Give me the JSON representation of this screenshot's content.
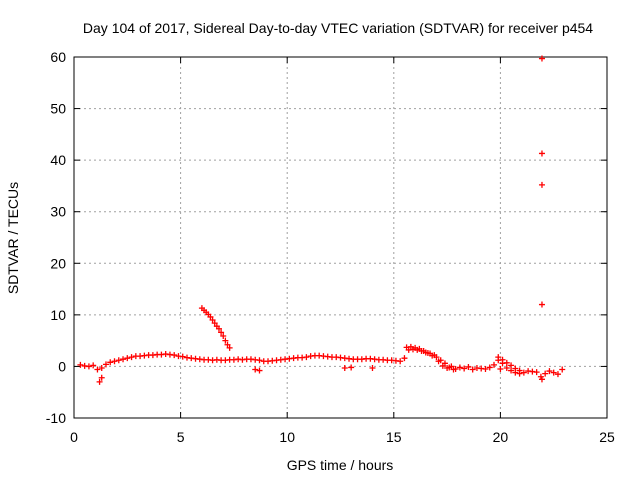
{
  "chart_data": {
    "type": "scatter",
    "title": "Day 104 of 2017, Sidereal Day-to-day VTEC variation (SDTVAR) for receiver p454",
    "xlabel": "GPS time / hours",
    "ylabel": "SDTVAR / TECUs",
    "xlim": [
      0,
      25
    ],
    "ylim": [
      -10,
      60
    ],
    "xticks": [
      0,
      5,
      10,
      15,
      20,
      25
    ],
    "yticks": [
      -10,
      0,
      10,
      20,
      30,
      40,
      50,
      60
    ],
    "grid": true,
    "marker": "+",
    "color": "#ff0000",
    "series": [
      {
        "name": "SDTVAR",
        "x": [
          0.3,
          0.5,
          0.7,
          0.9,
          1.1,
          1.3,
          1.5,
          1.7,
          1.9,
          2.1,
          2.3,
          2.5,
          2.7,
          2.9,
          3.1,
          3.3,
          3.5,
          3.7,
          3.9,
          4.1,
          4.3,
          4.5,
          4.7,
          4.9,
          5.1,
          5.3,
          5.5,
          5.7,
          5.9,
          6.1,
          6.3,
          6.5,
          6.7,
          6.9,
          7.1,
          7.3,
          7.5,
          7.7,
          7.9,
          8.1,
          8.3,
          8.5,
          8.7,
          8.9,
          9.1,
          9.3,
          9.5,
          9.7,
          9.9,
          10.1,
          10.3,
          10.5,
          10.7,
          10.9,
          11.1,
          11.3,
          11.5,
          11.7,
          11.9,
          12.1,
          12.3,
          12.5,
          12.7,
          12.9,
          13.1,
          13.3,
          13.5,
          13.7,
          13.9,
          14.1,
          14.3,
          14.5,
          14.7,
          14.9,
          15.1,
          15.3,
          15.5,
          15.7,
          15.9,
          16.1,
          16.3,
          16.5,
          16.7,
          16.9,
          17.1,
          17.3,
          17.5,
          17.7,
          17.9,
          18.1,
          18.3,
          18.5,
          18.7,
          18.9,
          19.1,
          19.3,
          19.5,
          19.7,
          19.9,
          20.1,
          20.3,
          20.5,
          20.7,
          20.9,
          21.1,
          21.3,
          21.5,
          21.7,
          21.9,
          22.1,
          22.3,
          22.5,
          22.7,
          22.9,
          1.2,
          1.3,
          6.0,
          6.1,
          6.2,
          6.3,
          6.4,
          6.5,
          6.6,
          6.7,
          6.8,
          6.9,
          7.0,
          7.1,
          7.2,
          7.3,
          15.6,
          15.8,
          16.0,
          16.2,
          16.4,
          16.6,
          16.8,
          17.0,
          17.2,
          17.4,
          17.6,
          17.8,
          19.9,
          20.1,
          20.3,
          20.5,
          20.7,
          20.9,
          8.5,
          8.7,
          12.7,
          13.0,
          14.0,
          20.0,
          21.95,
          21.95,
          21.95,
          21.95,
          21.95
        ],
        "y": [
          0.3,
          0.1,
          0.0,
          0.2,
          -0.6,
          -0.3,
          0.4,
          0.8,
          1.0,
          1.2,
          1.4,
          1.6,
          1.8,
          2.0,
          2.0,
          2.1,
          2.2,
          2.2,
          2.3,
          2.3,
          2.4,
          2.3,
          2.2,
          2.0,
          1.9,
          1.7,
          1.6,
          1.5,
          1.4,
          1.3,
          1.3,
          1.2,
          1.3,
          1.2,
          1.2,
          1.3,
          1.3,
          1.4,
          1.3,
          1.4,
          1.4,
          1.3,
          1.2,
          1.0,
          1.0,
          1.1,
          1.2,
          1.3,
          1.4,
          1.5,
          1.6,
          1.7,
          1.7,
          1.8,
          2.0,
          2.1,
          2.1,
          2.0,
          1.9,
          1.8,
          1.8,
          1.7,
          1.6,
          1.5,
          1.4,
          1.4,
          1.4,
          1.5,
          1.5,
          1.4,
          1.3,
          1.3,
          1.2,
          1.2,
          1.1,
          1.0,
          1.6,
          3.2,
          3.3,
          3.2,
          3.0,
          2.7,
          2.5,
          2.2,
          1.0,
          0.1,
          -0.3,
          0.0,
          -0.5,
          -0.2,
          -0.4,
          -0.1,
          -0.6,
          -0.3,
          -0.4,
          -0.5,
          -0.2,
          0.3,
          1.2,
          0.6,
          -0.3,
          -0.8,
          -1.2,
          -1.4,
          -1.2,
          -0.9,
          -1.0,
          -1.1,
          -2.0,
          -1.4,
          -0.9,
          -1.2,
          -1.5,
          -0.6,
          -3.0,
          -2.2,
          11.3,
          10.9,
          10.5,
          10.1,
          9.6,
          9.0,
          8.4,
          7.8,
          7.3,
          6.6,
          5.9,
          5.0,
          4.2,
          3.6,
          3.7,
          3.8,
          3.6,
          3.4,
          3.0,
          2.6,
          2.1,
          1.8,
          1.2,
          0.6,
          -0.2,
          -0.6,
          1.8,
          1.3,
          0.7,
          0.2,
          -0.4,
          -0.8,
          -0.6,
          -0.8,
          -0.3,
          -0.2,
          -0.3,
          -0.5,
          59.7,
          41.3,
          35.2,
          12.0,
          -2.5
        ]
      }
    ]
  }
}
